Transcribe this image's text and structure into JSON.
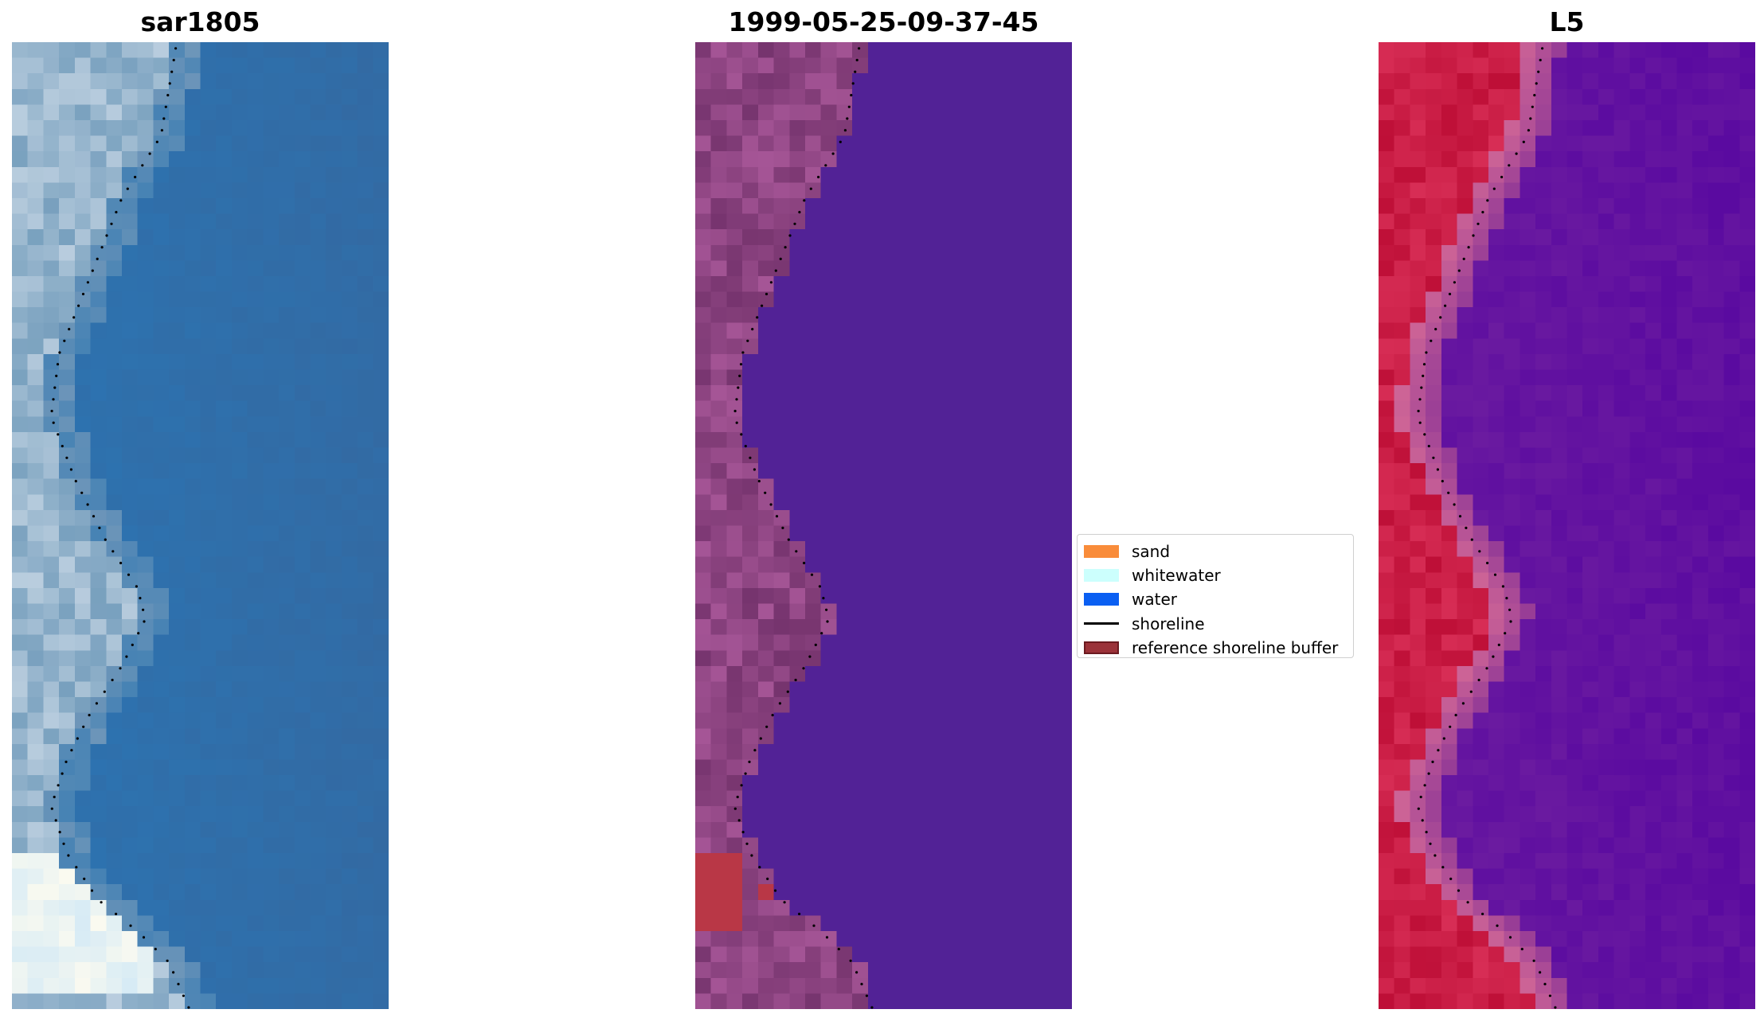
{
  "panels": [
    {
      "title": "sar1805",
      "image": "rgb-composite"
    },
    {
      "title": "1999-05-25-09-37-45",
      "image": "classified-overlay"
    },
    {
      "title": "L5",
      "image": "water-index"
    }
  ],
  "legend": {
    "items": [
      {
        "label": "sand",
        "color": "#f98c3a",
        "kind": "patch"
      },
      {
        "label": "whitewater",
        "color": "#ccfffd",
        "kind": "patch"
      },
      {
        "label": "water",
        "color": "#0a5ff2",
        "kind": "patch"
      },
      {
        "label": "shoreline",
        "color": "#000000",
        "kind": "line"
      },
      {
        "label": "reference shoreline buffer",
        "color": "#9b3239",
        "kind": "patch",
        "edge": "#6b1a20"
      }
    ]
  }
}
